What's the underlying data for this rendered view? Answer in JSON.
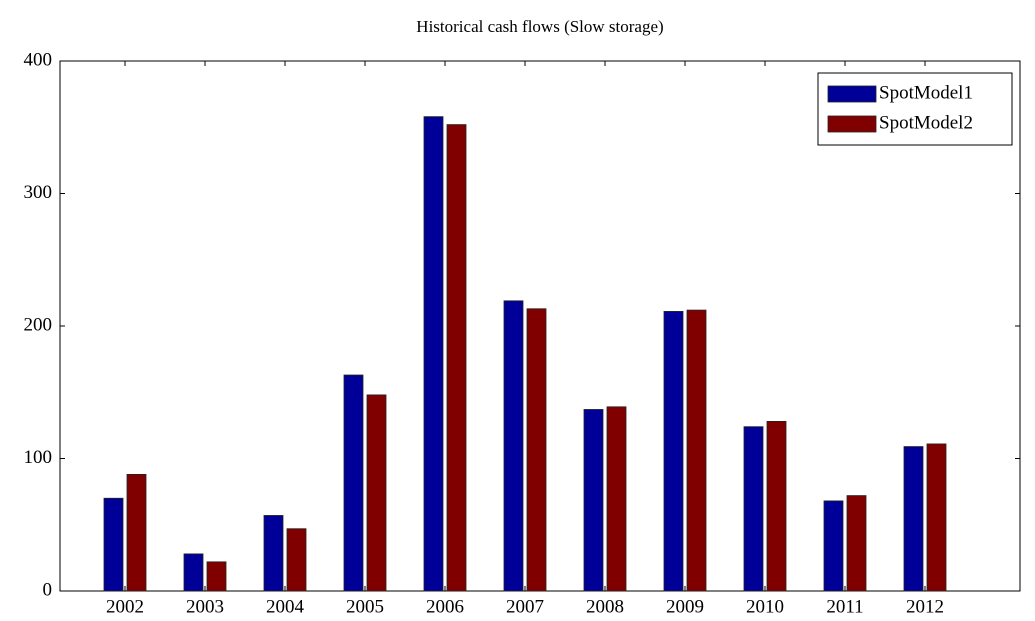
{
  "chart_data": {
    "type": "bar",
    "title": "Historical cash flows (Slow storage)",
    "categories": [
      "2002",
      "2003",
      "2004",
      "2005",
      "2006",
      "2007",
      "2008",
      "2009",
      "2010",
      "2011",
      "2012"
    ],
    "series": [
      {
        "name": "SpotModel1",
        "color": "#000099",
        "values": [
          70,
          28,
          57,
          163,
          358,
          219,
          137,
          211,
          124,
          68,
          109
        ]
      },
      {
        "name": "SpotModel2",
        "color": "#800000",
        "values": [
          88,
          22,
          47,
          148,
          352,
          213,
          139,
          212,
          128,
          72,
          111
        ]
      }
    ],
    "ylim": [
      0,
      400
    ],
    "yticks": [
      0,
      100,
      200,
      300,
      400
    ],
    "legend": "top-right"
  }
}
